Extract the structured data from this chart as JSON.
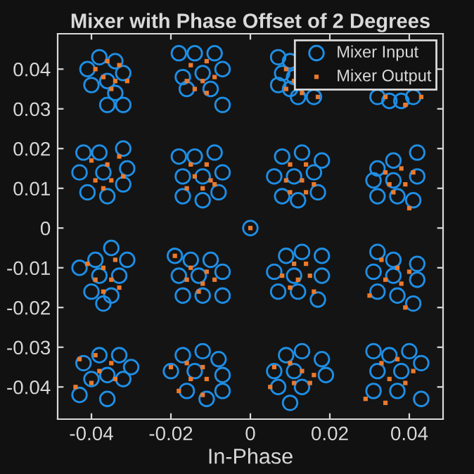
{
  "chart_data": {
    "type": "scatter",
    "title": "Mixer with Phase Offset of 2 Degrees",
    "xlabel": "In-Phase",
    "xlim": [
      -0.0485,
      0.0485
    ],
    "ylim": [
      -0.0481,
      0.0489
    ],
    "xticks": [
      -0.04,
      -0.02,
      0,
      0.02,
      0.04
    ],
    "yticks": [
      -0.04,
      -0.03,
      -0.02,
      -0.01,
      0,
      0.01,
      0.02,
      0.03,
      0.04
    ],
    "grid": false,
    "legend": "top right",
    "series": [
      {
        "name": "Mixer Input",
        "color": "#1f8fe6",
        "marker": "circle",
        "x": [
          -0.041,
          -0.038,
          -0.034,
          -0.032,
          -0.036,
          -0.04,
          -0.034,
          -0.036,
          -0.032,
          -0.018,
          -0.014,
          -0.009,
          -0.017,
          -0.012,
          -0.007,
          -0.016,
          -0.01,
          -0.007,
          0.007,
          0.01,
          0.008,
          0.011,
          0.007,
          0.01,
          0.012,
          0.016,
          0.032,
          0.035,
          0.038,
          0.041,
          -0.042,
          -0.038,
          -0.032,
          -0.043,
          -0.037,
          -0.031,
          -0.041,
          -0.036,
          -0.032,
          -0.018,
          -0.014,
          -0.009,
          -0.017,
          -0.012,
          -0.007,
          -0.017,
          -0.012,
          -0.008,
          0.008,
          0.013,
          0.018,
          0.006,
          0.011,
          0.016,
          0.008,
          0.012,
          0.017,
          0.032,
          0.036,
          0.042,
          0.031,
          0.036,
          0.042,
          0.032,
          0.037,
          0.041,
          -0.043,
          -0.039,
          -0.035,
          -0.031,
          -0.038,
          -0.033,
          -0.04,
          -0.035,
          -0.037,
          -0.019,
          -0.015,
          -0.01,
          -0.018,
          -0.013,
          -0.007,
          -0.017,
          -0.012,
          -0.007,
          0.009,
          0.013,
          0.018,
          0.006,
          0.011,
          0.018,
          0.007,
          0.012,
          0.017,
          0.032,
          0.036,
          0.042,
          0.031,
          0.036,
          0.042,
          0.032,
          0.037,
          0.041,
          -0.042,
          -0.038,
          -0.033,
          -0.03,
          -0.04,
          -0.036,
          -0.032,
          -0.043,
          -0.036,
          -0.017,
          -0.012,
          -0.008,
          -0.02,
          -0.014,
          -0.007,
          -0.016,
          -0.011,
          -0.007,
          0.009,
          0.013,
          0.018,
          0.006,
          0.011,
          0.019,
          0.007,
          0.013,
          0.01,
          0.031,
          0.035,
          0.04,
          0.043,
          0.032,
          0.038,
          0.031,
          0.037,
          0.043,
          0
        ],
        "values": [
          0.04,
          0.043,
          0.042,
          0.039,
          0.037,
          0.036,
          0.034,
          0.031,
          0.031,
          0.044,
          0.044,
          0.044,
          0.038,
          0.039,
          0.04,
          0.035,
          0.035,
          0.031,
          0.043,
          0.042,
          0.039,
          0.038,
          0.036,
          0.035,
          0.033,
          0.033,
          0.033,
          0.032,
          0.032,
          0.033,
          0.019,
          0.019,
          0.02,
          0.014,
          0.014,
          0.015,
          0.009,
          0.008,
          0.011,
          0.018,
          0.018,
          0.019,
          0.013,
          0.013,
          0.014,
          0.008,
          0.007,
          0.009,
          0.018,
          0.019,
          0.017,
          0.013,
          0.013,
          0.014,
          0.008,
          0.007,
          0.009,
          0.015,
          0.017,
          0.019,
          0.012,
          0.012,
          0.013,
          0.008,
          0.008,
          0.007,
          -0.01,
          -0.008,
          -0.005,
          -0.008,
          -0.012,
          -0.012,
          -0.016,
          -0.017,
          -0.019,
          -0.007,
          -0.008,
          -0.008,
          -0.012,
          -0.012,
          -0.011,
          -0.017,
          -0.017,
          -0.017,
          -0.007,
          -0.006,
          -0.007,
          -0.011,
          -0.012,
          -0.012,
          -0.016,
          -0.016,
          -0.018,
          -0.006,
          -0.008,
          -0.009,
          -0.011,
          -0.012,
          -0.013,
          -0.016,
          -0.017,
          -0.019,
          -0.034,
          -0.032,
          -0.032,
          -0.035,
          -0.038,
          -0.037,
          -0.038,
          -0.042,
          -0.043,
          -0.032,
          -0.031,
          -0.033,
          -0.036,
          -0.036,
          -0.037,
          -0.041,
          -0.043,
          -0.041,
          -0.032,
          -0.031,
          -0.033,
          -0.036,
          -0.036,
          -0.037,
          -0.04,
          -0.04,
          -0.044,
          -0.031,
          -0.032,
          -0.031,
          -0.034,
          -0.036,
          -0.036,
          -0.041,
          -0.041,
          -0.043,
          0
        ]
      },
      {
        "name": "Mixer Output",
        "color": "#ea7a2e",
        "marker": "square",
        "x": [
          -0.039,
          -0.036,
          -0.033,
          -0.037,
          -0.034,
          -0.031,
          -0.035,
          -0.015,
          -0.011,
          -0.016,
          -0.012,
          -0.009,
          -0.014,
          -0.011,
          0.009,
          0.011,
          0.009,
          0.013,
          0.017,
          0.034,
          0.039,
          0.043,
          -0.04,
          -0.036,
          -0.033,
          -0.039,
          -0.035,
          -0.032,
          -0.037,
          -0.015,
          -0.011,
          -0.014,
          -0.01,
          -0.016,
          -0.012,
          -0.009,
          0.01,
          0.014,
          0.009,
          0.013,
          0.016,
          0.01,
          0.014,
          0.034,
          0.038,
          0.041,
          0.035,
          0.039,
          0.036,
          0.04,
          -0.041,
          -0.037,
          -0.034,
          -0.039,
          -0.035,
          -0.037,
          -0.033,
          -0.019,
          -0.015,
          -0.011,
          -0.016,
          -0.012,
          -0.009,
          -0.013,
          0.011,
          0.014,
          0.008,
          0.012,
          0.015,
          0.01,
          0.016,
          0.033,
          0.037,
          0.04,
          0.034,
          0.038,
          0.03,
          0.039,
          -0.043,
          -0.039,
          -0.035,
          -0.038,
          -0.034,
          -0.04,
          -0.044,
          -0.02,
          -0.016,
          -0.012,
          -0.015,
          -0.011,
          -0.018,
          -0.012,
          0.006,
          0.01,
          0.013,
          0.016,
          0.005,
          0.011,
          0.015,
          0.033,
          0.037,
          0.041,
          0.035,
          0.039,
          0.029,
          0.034,
          0
        ],
        "values": [
          0.04,
          0.042,
          0.041,
          0.038,
          0.037,
          0.037,
          0.035,
          0.041,
          0.042,
          0.037,
          0.037,
          0.038,
          0.035,
          0.034,
          0.04,
          0.037,
          0.035,
          0.034,
          0.033,
          0.033,
          0.031,
          0.033,
          0.017,
          0.016,
          0.018,
          0.012,
          0.012,
          0.013,
          0.01,
          0.016,
          0.016,
          0.013,
          0.012,
          0.01,
          0.01,
          0.011,
          0.016,
          0.016,
          0.012,
          0.012,
          0.011,
          0.009,
          0.009,
          0.014,
          0.015,
          0.014,
          0.011,
          0.011,
          0.009,
          0.005,
          -0.009,
          -0.01,
          -0.008,
          -0.013,
          -0.013,
          -0.016,
          -0.015,
          -0.007,
          -0.01,
          -0.011,
          -0.013,
          -0.014,
          -0.013,
          -0.016,
          -0.009,
          -0.009,
          -0.012,
          -0.013,
          -0.012,
          -0.015,
          -0.016,
          -0.008,
          -0.01,
          -0.011,
          -0.013,
          -0.014,
          -0.017,
          -0.02,
          -0.033,
          -0.032,
          -0.034,
          -0.036,
          -0.038,
          -0.039,
          -0.04,
          -0.035,
          -0.034,
          -0.035,
          -0.038,
          -0.038,
          -0.041,
          -0.042,
          -0.035,
          -0.034,
          -0.036,
          -0.037,
          -0.04,
          -0.039,
          -0.039,
          -0.034,
          -0.033,
          -0.036,
          -0.038,
          -0.039,
          -0.043,
          -0.044,
          0
        ]
      }
    ]
  }
}
